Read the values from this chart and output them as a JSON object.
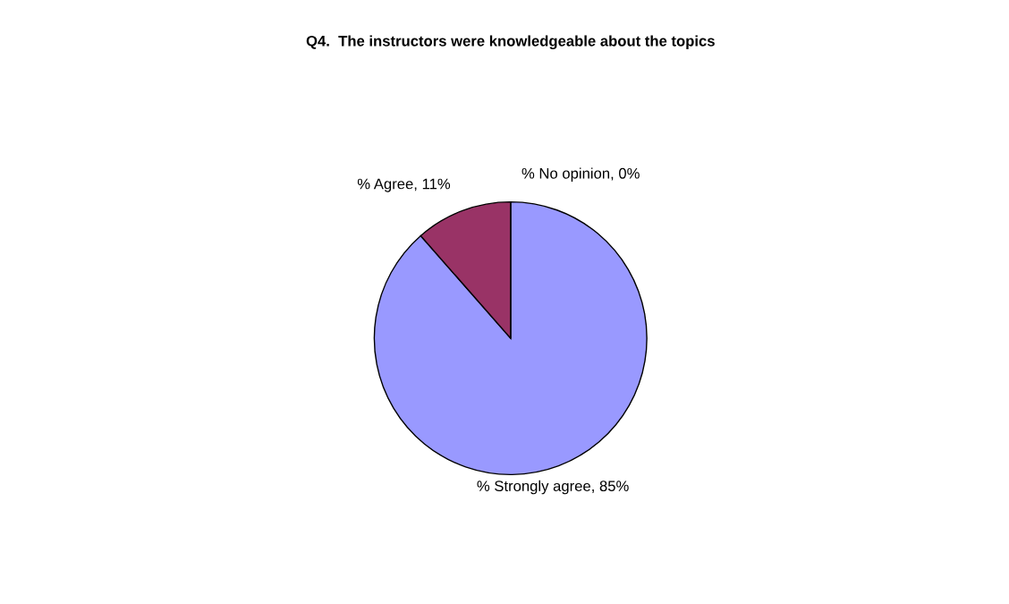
{
  "chart_data": {
    "type": "pie",
    "title": "Q4.  The instructors were knowledgeable about the topics",
    "categories": [
      "% Strongly agree",
      "% Agree",
      "% No opinion"
    ],
    "values": [
      85,
      11,
      0
    ],
    "value_labels": [
      ", 85%",
      ", 11%",
      ", 0%"
    ],
    "colors": [
      "#9999ff",
      "#993366",
      "#ffffcc"
    ]
  }
}
